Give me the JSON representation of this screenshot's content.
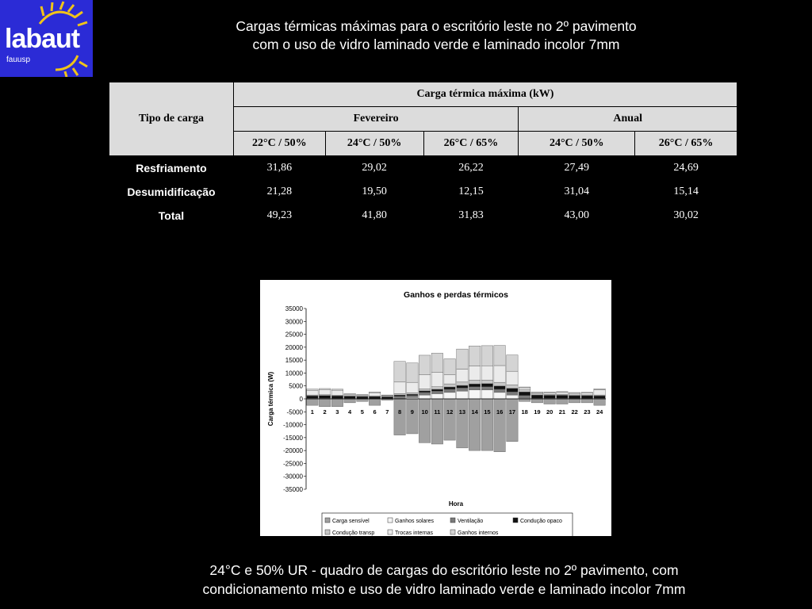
{
  "logo": {
    "text": "labaut",
    "sub": "fauusp"
  },
  "title": {
    "line1": "Cargas térmicas máximas para o escritório leste no 2º pavimento",
    "line2": "com o uso de vidro laminado verde e laminado incolor  7mm"
  },
  "table": {
    "row_header": "Tipo de carga",
    "main_header": "Carga térmica máxima (kW)",
    "groups": [
      "Fevereiro",
      "Anual"
    ],
    "columns": [
      "22°C / 50%",
      "24°C / 50%",
      "26°C / 65%",
      "24°C / 50%",
      "26°C / 65%"
    ],
    "rows": [
      {
        "label": "Resfriamento",
        "values": [
          "31,86",
          "29,02",
          "26,22",
          "27,49",
          "24,69"
        ]
      },
      {
        "label": "Desumidificação",
        "values": [
          "21,28",
          "19,50",
          "12,15",
          "31,04",
          "15,14"
        ]
      },
      {
        "label": "Total",
        "values": [
          "49,23",
          "41,80",
          "31,83",
          "43,00",
          "30,02"
        ]
      }
    ]
  },
  "chart_data": {
    "type": "bar",
    "stacked": true,
    "title": "Ganhos e perdas térmicos",
    "xlabel": "Hora",
    "ylabel": "Carga térmica (W)",
    "ylim": [
      -35000,
      35000
    ],
    "ytick_step": 5000,
    "grid": false,
    "legend_position": "bottom",
    "categories": [
      "1",
      "2",
      "3",
      "4",
      "5",
      "6",
      "7",
      "8",
      "9",
      "10",
      "11",
      "12",
      "13",
      "14",
      "15",
      "16",
      "17",
      "18",
      "19",
      "20",
      "21",
      "22",
      "23",
      "24"
    ],
    "series": [
      {
        "name": "Carga sensível",
        "color": "#a0a0a0",
        "values": [
          -2500,
          -3000,
          -3000,
          -1500,
          -1000,
          -2500,
          -500,
          -14000,
          -13500,
          -17000,
          -17500,
          -16000,
          -19000,
          -20000,
          -20000,
          -20500,
          -16500,
          -1000,
          -1500,
          -2000,
          -2000,
          -1500,
          -1500,
          -2500
        ]
      },
      {
        "name": "Ganhos solares",
        "color": "#f5f5f5",
        "values": [
          0,
          0,
          0,
          0,
          0,
          0,
          0,
          200,
          500,
          1500,
          2000,
          2500,
          3000,
          3500,
          3500,
          2500,
          1500,
          300,
          0,
          0,
          0,
          0,
          0,
          0
        ]
      },
      {
        "name": "Ventilação",
        "color": "#7a7a7a",
        "values": [
          200,
          200,
          150,
          150,
          100,
          100,
          100,
          800,
          800,
          1000,
          1000,
          1200,
          1200,
          1200,
          1200,
          1200,
          1200,
          1000,
          200,
          200,
          200,
          150,
          150,
          200
        ]
      },
      {
        "name": "Condução opaco",
        "color": "#111111",
        "values": [
          1000,
          1100,
          1000,
          900,
          800,
          800,
          700,
          500,
          500,
          600,
          700,
          900,
          1000,
          1100,
          1200,
          1300,
          1400,
          1400,
          1300,
          1200,
          1200,
          1100,
          1100,
          1000
        ]
      },
      {
        "name": "Condução transp",
        "color": "#c8c8c8",
        "values": [
          300,
          300,
          300,
          200,
          200,
          200,
          200,
          500,
          600,
          800,
          1000,
          1200,
          1300,
          1400,
          1400,
          1400,
          1300,
          800,
          400,
          400,
          400,
          300,
          300,
          300
        ]
      },
      {
        "name": "Trocas internas",
        "color": "#ebebeb",
        "values": [
          1800,
          2000,
          1900,
          500,
          400,
          1300,
          300,
          4500,
          4000,
          5500,
          5500,
          3500,
          5000,
          5500,
          5500,
          6500,
          5300,
          800,
          500,
          600,
          700,
          600,
          700,
          2000
        ]
      },
      {
        "name": "Ganhos internos",
        "color": "#d4d4d4",
        "values": [
          500,
          400,
          400,
          300,
          200,
          300,
          200,
          8000,
          7500,
          7500,
          7500,
          6200,
          7800,
          7800,
          7800,
          7800,
          6300,
          300,
          300,
          300,
          300,
          300,
          300,
          400
        ]
      }
    ]
  },
  "caption": {
    "line1": "24°C e 50% UR - quadro de cargas do escritório leste no 2º pavimento, com",
    "line2": "condicionamento misto e uso de vidro laminado verde e laminado incolor 7mm"
  }
}
